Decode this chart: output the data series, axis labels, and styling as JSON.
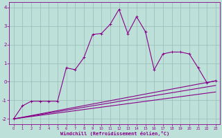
{
  "xlabel": "Windchill (Refroidissement éolien,°C)",
  "bg_color": "#bde0d8",
  "line_color": "#880088",
  "grid_color": "#99bbbb",
  "ylim": [
    -2.3,
    4.3
  ],
  "xlim": [
    -0.5,
    23.5
  ],
  "yticks": [
    -2,
    -1,
    0,
    1,
    2,
    3,
    4
  ],
  "xticks": [
    0,
    1,
    2,
    3,
    4,
    5,
    6,
    7,
    8,
    9,
    10,
    11,
    12,
    13,
    14,
    15,
    16,
    17,
    18,
    19,
    20,
    21,
    22,
    23
  ],
  "series1_x": [
    0,
    1,
    2,
    3,
    4,
    5,
    6,
    7,
    8,
    9,
    10,
    11,
    12,
    13,
    14,
    15,
    16,
    17,
    18,
    19,
    20,
    21,
    22,
    23
  ],
  "series1_y": [
    -2.0,
    -1.3,
    -1.05,
    -1.05,
    -1.05,
    -1.05,
    0.75,
    0.65,
    1.3,
    2.55,
    2.6,
    3.1,
    3.9,
    2.6,
    3.5,
    2.7,
    0.65,
    1.5,
    1.6,
    1.6,
    1.5,
    0.75,
    -0.05,
    0.05
  ],
  "series2_x": [
    0,
    23
  ],
  "series2_y": [
    -2.0,
    0.05
  ],
  "series3_x": [
    0,
    23
  ],
  "series3_y": [
    -2.0,
    -0.2
  ],
  "series4_x": [
    0,
    23
  ],
  "series4_y": [
    -2.0,
    -0.55
  ]
}
